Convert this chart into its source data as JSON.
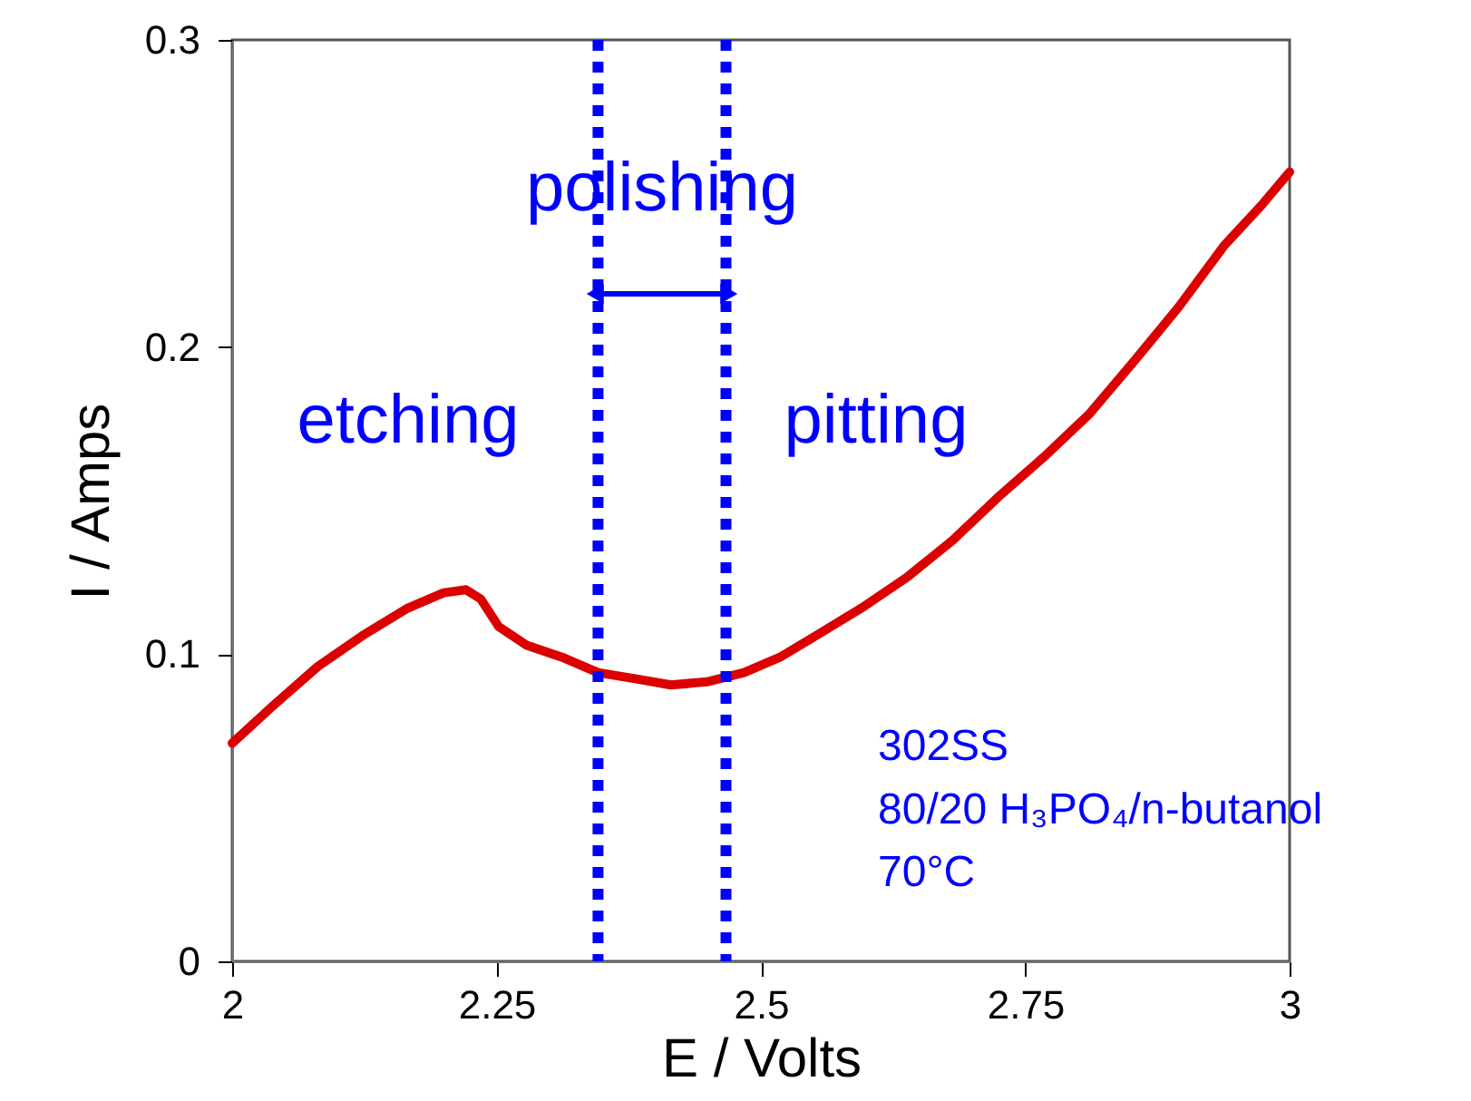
{
  "chart_data": {
    "type": "line",
    "xlabel": "E / Volts",
    "ylabel": "I / Amps",
    "x": [
      2.0,
      2.038,
      2.081,
      2.123,
      2.166,
      2.2,
      2.221,
      2.235,
      2.252,
      2.278,
      2.312,
      2.346,
      2.381,
      2.415,
      2.449,
      2.484,
      2.518,
      2.552,
      2.595,
      2.638,
      2.681,
      2.724,
      2.767,
      2.81,
      2.852,
      2.895,
      2.938,
      2.973,
      3.0
    ],
    "series": [
      {
        "color": "#dd0000",
        "values": [
          0.071,
          0.083,
          0.096,
          0.106,
          0.115,
          0.12,
          0.121,
          0.118,
          0.109,
          0.103,
          0.099,
          0.094,
          0.092,
          0.09,
          0.091,
          0.094,
          0.099,
          0.106,
          0.115,
          0.125,
          0.137,
          0.151,
          0.164,
          0.178,
          0.195,
          0.213,
          0.233,
          0.246,
          0.257
        ]
      }
    ],
    "xlim": [
      2,
      3
    ],
    "xticks": [
      2,
      2.25,
      2.5,
      2.75,
      3
    ],
    "ylim": [
      0,
      0.3
    ],
    "yticks": [
      0,
      0.1,
      0.2,
      0.3
    ],
    "grid": false,
    "marker": "none",
    "line_style": "solid",
    "ref_lines": [
      {
        "axis": "x",
        "value": 2.346,
        "color": "#0000ff",
        "line_style": "dotted"
      },
      {
        "axis": "x",
        "value": 2.467,
        "color": "#0000ff",
        "line_style": "dotted"
      }
    ],
    "annotations": [
      "etching",
      "polishing",
      "pitting",
      "302SS\n80/20 H₃PO₄/n-butanol\n70°C"
    ]
  }
}
